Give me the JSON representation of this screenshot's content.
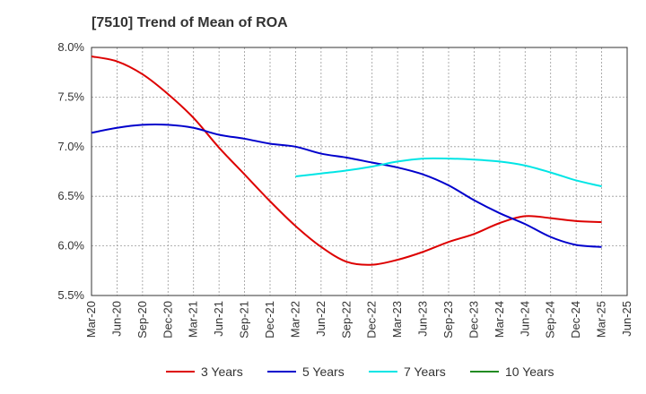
{
  "chart_data": {
    "type": "line",
    "title": "[7510]  Trend of Mean of ROA",
    "xlabel": "",
    "ylabel": "",
    "ylim": [
      5.5,
      8.0
    ],
    "yticks": [
      "5.5%",
      "6.0%",
      "6.5%",
      "7.0%",
      "7.5%",
      "8.0%"
    ],
    "ytick_values": [
      5.5,
      6.0,
      6.5,
      7.0,
      7.5,
      8.0
    ],
    "categories": [
      "Mar-20",
      "Jun-20",
      "Sep-20",
      "Dec-20",
      "Mar-21",
      "Jun-21",
      "Sep-21",
      "Dec-21",
      "Mar-22",
      "Jun-22",
      "Sep-22",
      "Dec-22",
      "Mar-23",
      "Jun-23",
      "Sep-23",
      "Dec-23",
      "Mar-24",
      "Jun-24",
      "Sep-24",
      "Dec-24",
      "Mar-25",
      "Jun-25"
    ],
    "grid": true,
    "legend_position": "bottom",
    "series": [
      {
        "name": "3 Years",
        "color": "#dd0000",
        "values": [
          7.91,
          7.86,
          7.73,
          7.53,
          7.29,
          6.99,
          6.72,
          6.45,
          6.2,
          5.99,
          5.84,
          5.81,
          5.86,
          5.94,
          6.04,
          6.12,
          6.23,
          6.3,
          6.28,
          6.25,
          6.24,
          null
        ]
      },
      {
        "name": "5 Years",
        "color": "#0000cc",
        "values": [
          7.14,
          7.19,
          7.22,
          7.22,
          7.19,
          7.12,
          7.08,
          7.03,
          7.0,
          6.93,
          6.89,
          6.84,
          6.79,
          6.72,
          6.61,
          6.46,
          6.33,
          6.22,
          6.09,
          6.01,
          5.99,
          null
        ]
      },
      {
        "name": "7 Years",
        "color": "#00e5e5",
        "values": [
          null,
          null,
          null,
          null,
          null,
          null,
          null,
          null,
          6.7,
          6.73,
          6.76,
          6.8,
          6.85,
          6.88,
          6.88,
          6.87,
          6.85,
          6.81,
          6.74,
          6.66,
          6.6,
          null
        ]
      },
      {
        "name": "10 Years",
        "color": "#228b22",
        "values": [
          null,
          null,
          null,
          null,
          null,
          null,
          null,
          null,
          null,
          null,
          null,
          null,
          null,
          null,
          null,
          null,
          null,
          null,
          null,
          null,
          null,
          null
        ]
      }
    ]
  }
}
